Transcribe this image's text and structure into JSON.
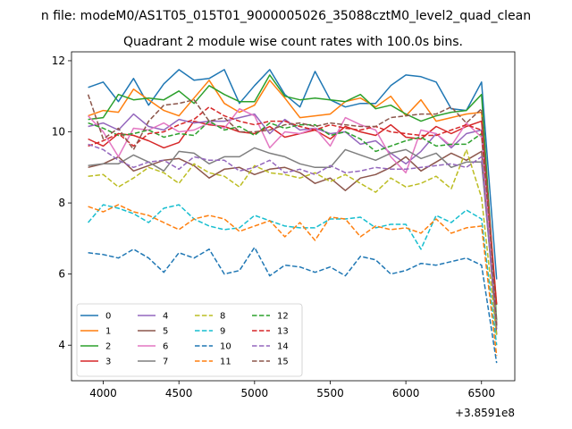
{
  "chart_data": {
    "type": "line",
    "suptitle": "n file: modeM0/AS1T05_015T01_9000005026_35088cztM0_level2_quad_clean",
    "title": "Quadrant 2 module wise count rates with 100.0s bins.",
    "x_offset_label": "+3.8591e8",
    "xlim": [
      3790,
      6720
    ],
    "ylim": [
      3.0,
      12.25
    ],
    "x_ticks": [
      4000,
      4500,
      5000,
      5500,
      6000,
      6500
    ],
    "x_tick_labels": [
      "4000",
      "4500",
      "5000",
      "5500",
      "6000",
      "6500"
    ],
    "y_ticks": [
      4,
      6,
      8,
      10,
      12
    ],
    "y_tick_labels": [
      "4",
      "6",
      "8",
      "10",
      "12"
    ],
    "legend_loc": "lower left",
    "legend_ncol": 4,
    "x": [
      3900,
      4000,
      4100,
      4200,
      4300,
      4400,
      4500,
      4600,
      4700,
      4800,
      4900,
      5000,
      5100,
      5200,
      5300,
      5400,
      5500,
      5600,
      5700,
      5800,
      5900,
      6000,
      6100,
      6200,
      6300,
      6400,
      6500,
      6600
    ],
    "series": [
      {
        "name": "0",
        "color": "#1f77b4",
        "dash": "solid",
        "values": [
          11.25,
          11.4,
          10.85,
          11.5,
          10.75,
          11.35,
          11.75,
          11.45,
          11.5,
          11.75,
          10.8,
          11.3,
          11.75,
          11.05,
          10.7,
          11.7,
          10.9,
          10.7,
          10.8,
          10.8,
          11.3,
          11.6,
          11.55,
          11.4,
          10.65,
          10.6,
          11.4,
          5.85
        ]
      },
      {
        "name": "1",
        "color": "#ff7f0e",
        "dash": "solid",
        "values": [
          10.45,
          10.6,
          10.55,
          11.2,
          10.9,
          10.6,
          10.45,
          10.95,
          11.45,
          10.8,
          10.55,
          10.75,
          11.45,
          10.95,
          10.4,
          10.45,
          10.5,
          10.85,
          10.95,
          10.7,
          11.0,
          10.45,
          10.9,
          10.3,
          10.4,
          10.5,
          10.55,
          4.6
        ]
      },
      {
        "name": "2",
        "color": "#2ca02c",
        "dash": "solid",
        "values": [
          10.35,
          10.4,
          11.05,
          10.9,
          10.95,
          10.9,
          11.15,
          10.8,
          11.3,
          11.05,
          10.85,
          10.85,
          11.6,
          11.0,
          10.9,
          10.95,
          10.9,
          10.85,
          11.05,
          10.65,
          10.75,
          10.5,
          10.3,
          10.45,
          10.55,
          10.6,
          11.05,
          4.7
        ]
      },
      {
        "name": "3",
        "color": "#d62728",
        "dash": "solid",
        "values": [
          9.8,
          9.6,
          9.95,
          9.9,
          9.75,
          9.55,
          9.7,
          10.3,
          10.2,
          10.15,
          10.0,
          9.95,
          10.15,
          9.85,
          9.95,
          10.05,
          9.8,
          10.15,
          10.0,
          9.9,
          10.2,
          9.85,
          9.8,
          10.15,
          9.95,
          10.15,
          10.3,
          5.15
        ]
      },
      {
        "name": "4",
        "color": "#9467bd",
        "dash": "solid",
        "values": [
          10.15,
          10.25,
          10.05,
          10.5,
          10.15,
          10.05,
          10.35,
          10.25,
          10.3,
          10.3,
          10.4,
          10.5,
          9.95,
          10.35,
          10.05,
          10.1,
          9.95,
          10.0,
          9.65,
          9.75,
          9.4,
          9.1,
          9.45,
          9.95,
          9.55,
          9.95,
          10.05,
          4.45
        ]
      },
      {
        "name": "5",
        "color": "#8c564b",
        "dash": "solid",
        "values": [
          9.0,
          9.1,
          9.3,
          8.9,
          9.05,
          9.2,
          9.25,
          9.05,
          8.7,
          8.95,
          9.0,
          8.8,
          8.95,
          9.0,
          8.85,
          8.55,
          8.7,
          8.35,
          8.7,
          8.8,
          9.0,
          9.3,
          8.9,
          9.15,
          9.4,
          9.2,
          9.45,
          4.3
        ]
      },
      {
        "name": "6",
        "color": "#e377c2",
        "dash": "solid",
        "values": [
          10.45,
          10.0,
          9.3,
          10.1,
          10.05,
          10.25,
          10.0,
          10.05,
          10.25,
          10.1,
          10.65,
          10.45,
          9.55,
          10.0,
          9.95,
          10.1,
          9.6,
          10.4,
          10.2,
          10.05,
          9.3,
          8.85,
          10.05,
          9.95,
          9.6,
          10.25,
          9.85,
          4.6
        ]
      },
      {
        "name": "7",
        "color": "#7f7f7f",
        "dash": "solid",
        "values": [
          9.05,
          9.1,
          9.1,
          9.35,
          9.15,
          8.9,
          9.45,
          9.4,
          9.1,
          9.3,
          9.3,
          9.55,
          9.4,
          9.3,
          9.1,
          9.0,
          9.0,
          9.5,
          9.35,
          9.2,
          9.4,
          9.5,
          9.25,
          9.4,
          9.0,
          9.15,
          9.15,
          4.55
        ]
      },
      {
        "name": "8",
        "color": "#bcbd22",
        "dash": "dashed",
        "values": [
          8.75,
          8.8,
          8.45,
          8.7,
          9.0,
          8.85,
          8.55,
          9.1,
          8.85,
          8.75,
          8.45,
          9.05,
          8.85,
          8.8,
          8.7,
          8.85,
          8.6,
          8.8,
          8.55,
          8.3,
          8.7,
          8.45,
          8.55,
          8.75,
          8.4,
          9.5,
          8.15,
          4.25
        ]
      },
      {
        "name": "9",
        "color": "#17becf",
        "dash": "dashed",
        "values": [
          7.45,
          7.95,
          7.85,
          7.7,
          7.45,
          7.85,
          7.95,
          7.55,
          7.35,
          7.25,
          7.3,
          7.65,
          7.5,
          7.35,
          7.3,
          7.3,
          7.55,
          7.55,
          7.6,
          7.3,
          7.4,
          7.4,
          6.7,
          7.65,
          7.45,
          7.8,
          7.55,
          4.0
        ]
      },
      {
        "name": "10",
        "color": "#1f77b4",
        "dash": "dashed",
        "values": [
          6.6,
          6.55,
          6.45,
          6.7,
          6.45,
          6.05,
          6.6,
          6.45,
          6.7,
          6.0,
          6.1,
          6.75,
          5.95,
          6.25,
          6.2,
          6.05,
          6.2,
          5.95,
          6.5,
          6.4,
          6.0,
          6.1,
          6.3,
          6.25,
          6.35,
          6.45,
          6.25,
          3.5
        ]
      },
      {
        "name": "11",
        "color": "#ff7f0e",
        "dash": "dashed",
        "values": [
          7.9,
          7.75,
          7.95,
          7.75,
          7.65,
          7.45,
          7.25,
          7.55,
          7.65,
          7.55,
          7.2,
          7.35,
          7.5,
          7.05,
          7.45,
          6.95,
          7.6,
          7.55,
          7.05,
          7.35,
          7.25,
          7.3,
          7.15,
          7.55,
          7.15,
          7.3,
          7.35,
          3.7
        ]
      },
      {
        "name": "12",
        "color": "#2ca02c",
        "dash": "dashed",
        "values": [
          10.25,
          10.1,
          9.9,
          9.95,
          10.05,
          9.85,
          9.95,
          9.9,
          10.3,
          10.05,
          10.15,
          9.9,
          10.25,
          10.1,
          10.2,
          10.2,
          9.9,
          10.0,
          9.8,
          9.45,
          9.6,
          9.75,
          9.85,
          9.6,
          9.65,
          9.65,
          9.95,
          5.1
        ]
      },
      {
        "name": "13",
        "color": "#d62728",
        "dash": "dashed",
        "values": [
          9.6,
          9.75,
          9.95,
          9.6,
          9.95,
          10.0,
          10.2,
          10.35,
          10.7,
          10.45,
          10.3,
          10.2,
          10.3,
          10.3,
          10.15,
          10.05,
          10.2,
          10.1,
          10.05,
          10.15,
          10.0,
          9.95,
          9.9,
          9.9,
          10.05,
          10.2,
          10.05,
          5.1
        ]
      },
      {
        "name": "14",
        "color": "#9467bd",
        "dash": "dashed",
        "values": [
          9.65,
          9.5,
          9.2,
          9.0,
          9.15,
          9.2,
          8.95,
          9.3,
          9.2,
          9.2,
          8.9,
          9.0,
          9.2,
          8.85,
          8.95,
          8.8,
          9.05,
          8.85,
          8.9,
          9.0,
          8.95,
          8.95,
          9.0,
          9.05,
          9.1,
          9.0,
          9.3,
          4.45
        ]
      },
      {
        "name": "15",
        "color": "#8c564b",
        "dash": "dashed",
        "values": [
          11.05,
          9.8,
          10.1,
          9.5,
          10.3,
          10.75,
          10.8,
          10.9,
          10.3,
          10.4,
          10.0,
          10.0,
          10.05,
          10.2,
          10.25,
          10.15,
          10.25,
          10.2,
          10.15,
          10.15,
          10.4,
          10.45,
          10.5,
          10.5,
          10.7,
          10.25,
          10.65,
          4.55
        ]
      }
    ]
  }
}
